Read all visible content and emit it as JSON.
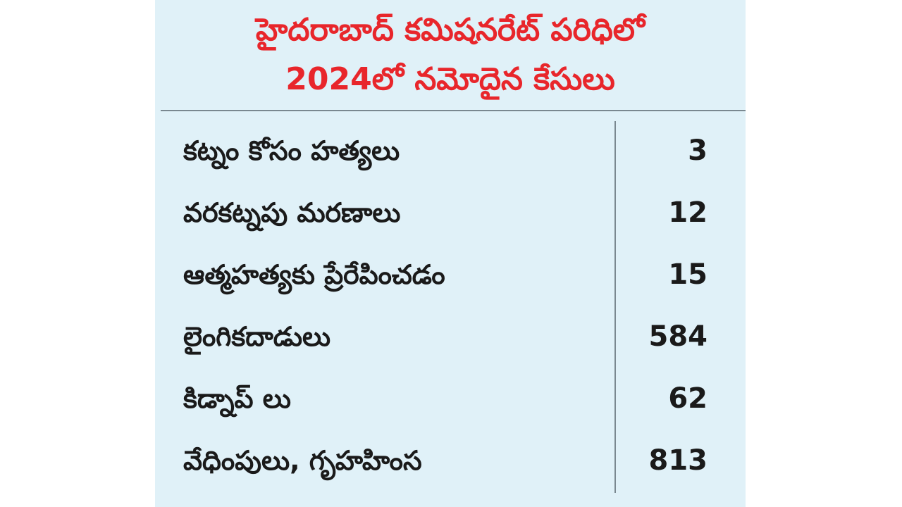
{
  "chart_data": {
    "type": "table",
    "title": [
      "హైదరాబాద్ కమిషనరేట్ పరిధిలో",
      "2024లో నమోదైన కేసులు"
    ],
    "categories": [
      "కట్నం కోసం హత్యలు",
      "వరకట్నపు మరణాలు",
      "ఆత్మహత్యకు ప్రేరేపించడం",
      "లైంగికదాడులు",
      "కిడ్నాప్ లు",
      "వేధింపులు, గృహహింస"
    ],
    "values": [
      3,
      12,
      15,
      584,
      62,
      813
    ]
  }
}
